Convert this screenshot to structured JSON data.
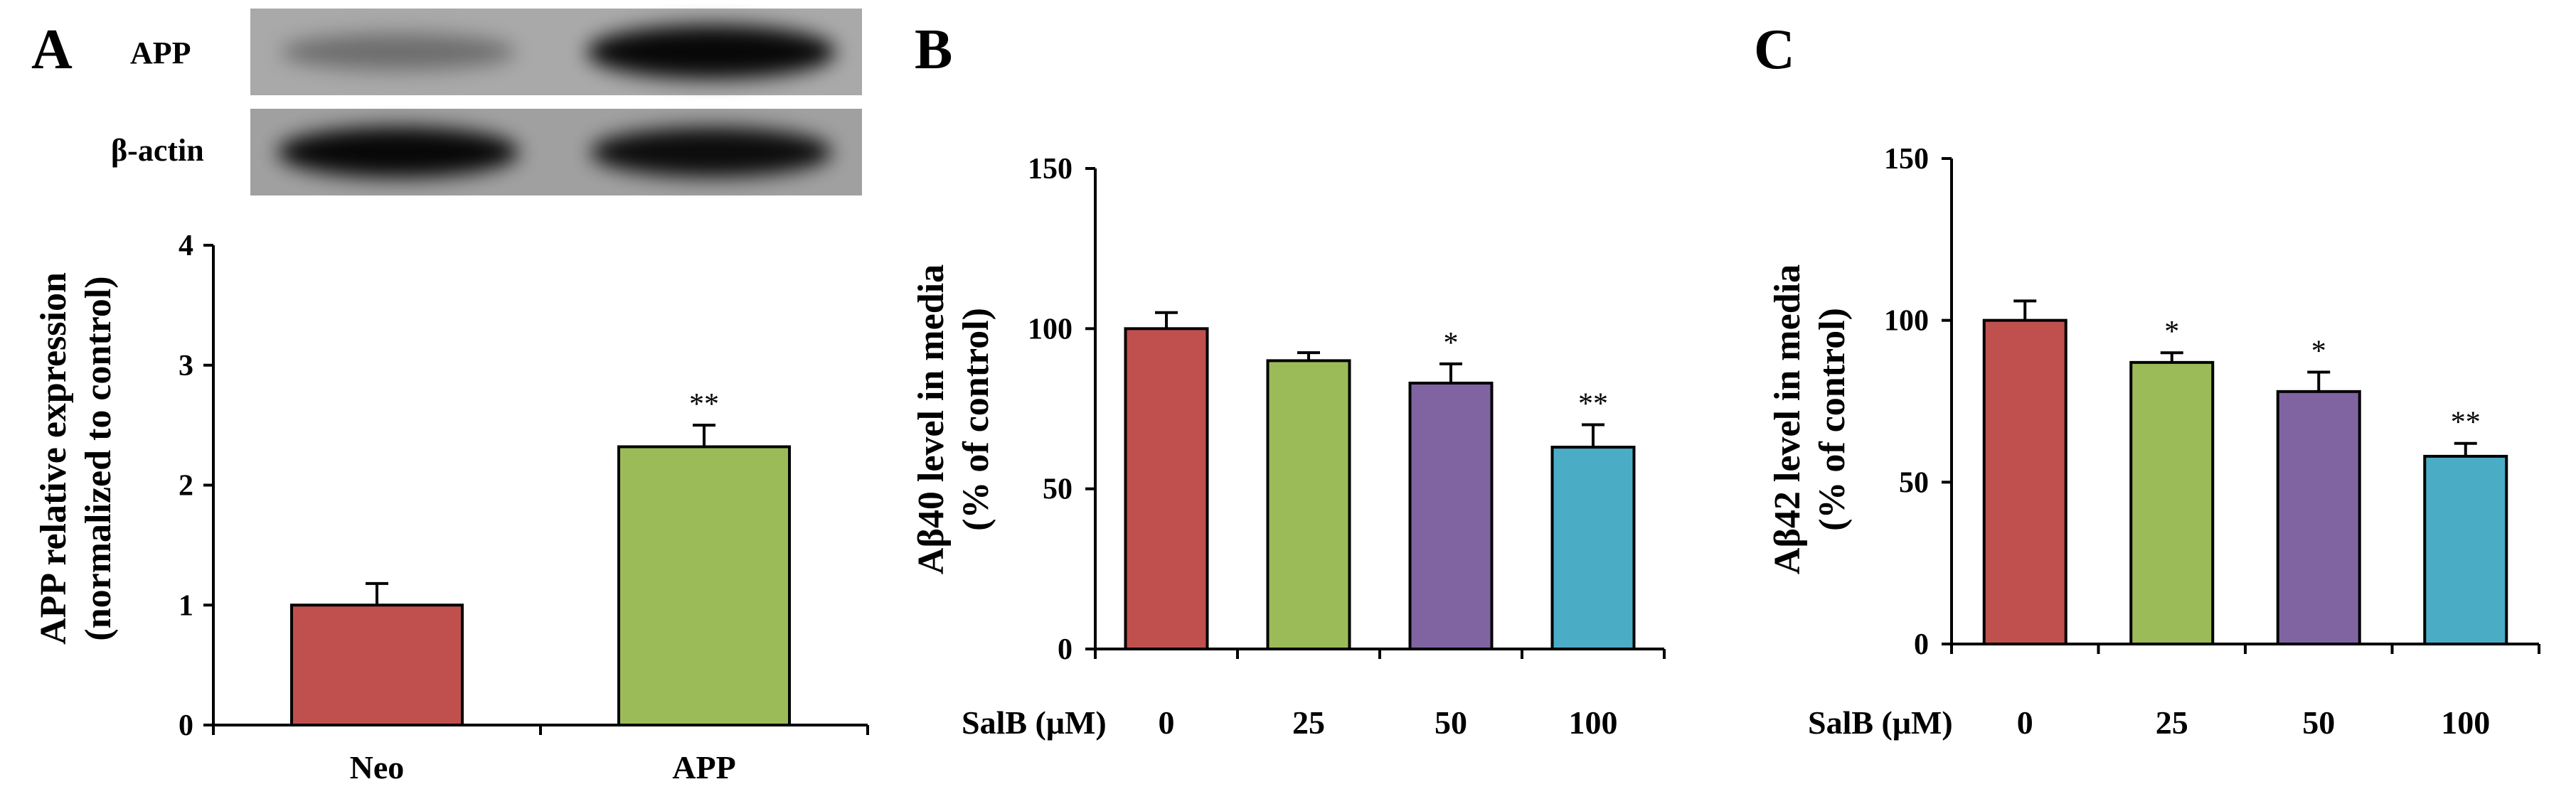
{
  "blot": {
    "rows": [
      {
        "label": "APP",
        "band_intensity": [
          0.35,
          0.95
        ]
      },
      {
        "label": "β-actin",
        "band_intensity": [
          0.95,
          0.92
        ]
      }
    ]
  },
  "colors": {
    "red": "#C0504D",
    "green": "#9BBB59",
    "purple": "#8064A2",
    "blue": "#4BACC6"
  },
  "chart_data": [
    {
      "panel": "A",
      "type": "bar",
      "categories": [
        "Neo",
        "APP"
      ],
      "values": [
        1.0,
        2.32
      ],
      "errors": [
        0.18,
        0.18
      ],
      "significance": [
        "",
        "**"
      ],
      "bar_colors": [
        "#C0504D",
        "#9BBB59"
      ],
      "title": "",
      "xlabel": "",
      "ylabel_lines": [
        "APP relative expression",
        "(normalized to control)"
      ],
      "ylim": [
        0,
        4
      ],
      "yticks": [
        0,
        1,
        2,
        3,
        4
      ],
      "condition_label": ""
    },
    {
      "panel": "B",
      "type": "bar",
      "categories": [
        "0",
        "25",
        "50",
        "100"
      ],
      "values": [
        100,
        90,
        83,
        63
      ],
      "errors": [
        5,
        2.5,
        6,
        7
      ],
      "significance": [
        "",
        "",
        "*",
        "**"
      ],
      "bar_colors": [
        "#C0504D",
        "#9BBB59",
        "#8064A2",
        "#4BACC6"
      ],
      "title": "",
      "xlabel": "",
      "ylabel_lines": [
        "Aβ40 level in media",
        "(% of control)"
      ],
      "ylim": [
        0,
        150
      ],
      "yticks": [
        0,
        50,
        100,
        150
      ],
      "condition_label": "SalB (μM)"
    },
    {
      "panel": "C",
      "type": "bar",
      "categories": [
        "0",
        "25",
        "50",
        "100"
      ],
      "values": [
        100,
        87,
        78,
        58
      ],
      "errors": [
        6,
        3,
        6,
        4
      ],
      "significance": [
        "",
        "*",
        "*",
        "**"
      ],
      "bar_colors": [
        "#C0504D",
        "#9BBB59",
        "#8064A2",
        "#4BACC6"
      ],
      "title": "",
      "xlabel": "",
      "ylabel_lines": [
        "Aβ42 level in media",
        "(% of control)"
      ],
      "ylim": [
        0,
        150
      ],
      "yticks": [
        0,
        50,
        100,
        150
      ],
      "condition_label": "SalB (μM)"
    }
  ]
}
